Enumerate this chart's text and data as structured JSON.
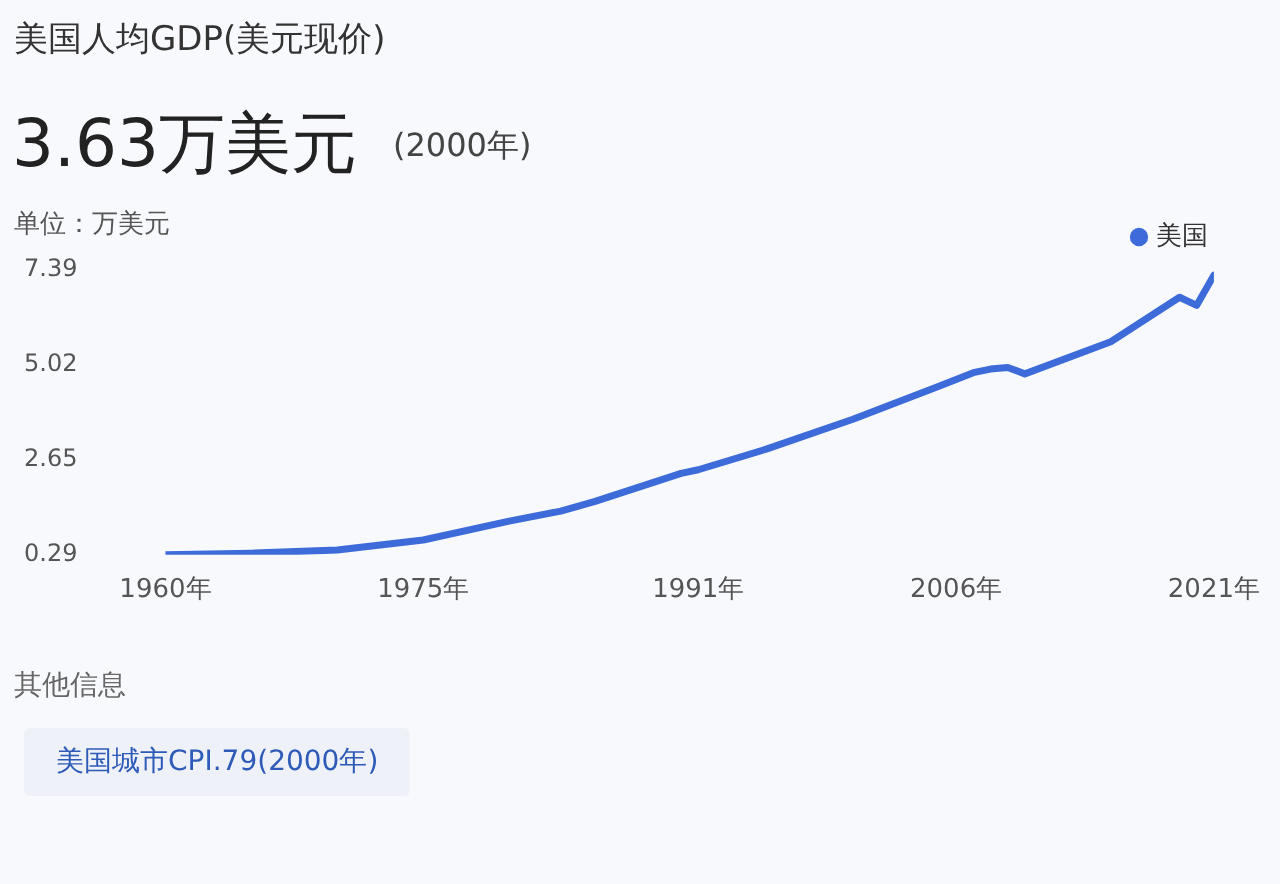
{
  "chart_data": {
    "type": "line",
    "title": "美国人均GDP(美元现价)",
    "subtitle": "3.63万美元",
    "ylabel": "单位：万美元",
    "annotations": [
      "(2000年)",
      "其他信息",
      "美国城市CPI.79(2000年)"
    ],
    "x": [
      1960,
      1965,
      1970,
      1975,
      1980,
      1983,
      1985,
      1990,
      1991,
      1995,
      2000,
      2005,
      2007,
      2008,
      2009,
      2010,
      2015,
      2019,
      2020,
      2021
    ],
    "series": [
      {
        "name": "美国",
        "color": "#3d6bd9",
        "values": [
          0.29,
          0.33,
          0.41,
          0.66,
          1.13,
          1.38,
          1.62,
          2.32,
          2.41,
          2.93,
          3.67,
          4.49,
          4.83,
          4.92,
          4.96,
          4.8,
          5.6,
          6.71,
          6.51,
          7.26
        ]
      }
    ],
    "xlim": [
      1960,
      2021
    ],
    "xticks": [
      {
        "value": 1960,
        "label": "1960年"
      },
      {
        "value": 1975,
        "label": "1975年"
      },
      {
        "value": 1991,
        "label": "1991年"
      },
      {
        "value": 2006,
        "label": "2006年"
      },
      {
        "value": 2021,
        "label": "2021年"
      }
    ],
    "ylim": [
      0.29,
      7.39
    ],
    "yticks": [
      0.29,
      2.65,
      5.02,
      7.39
    ],
    "grid": false,
    "legend": "top right",
    "marker": "none",
    "line_style": "solid"
  }
}
